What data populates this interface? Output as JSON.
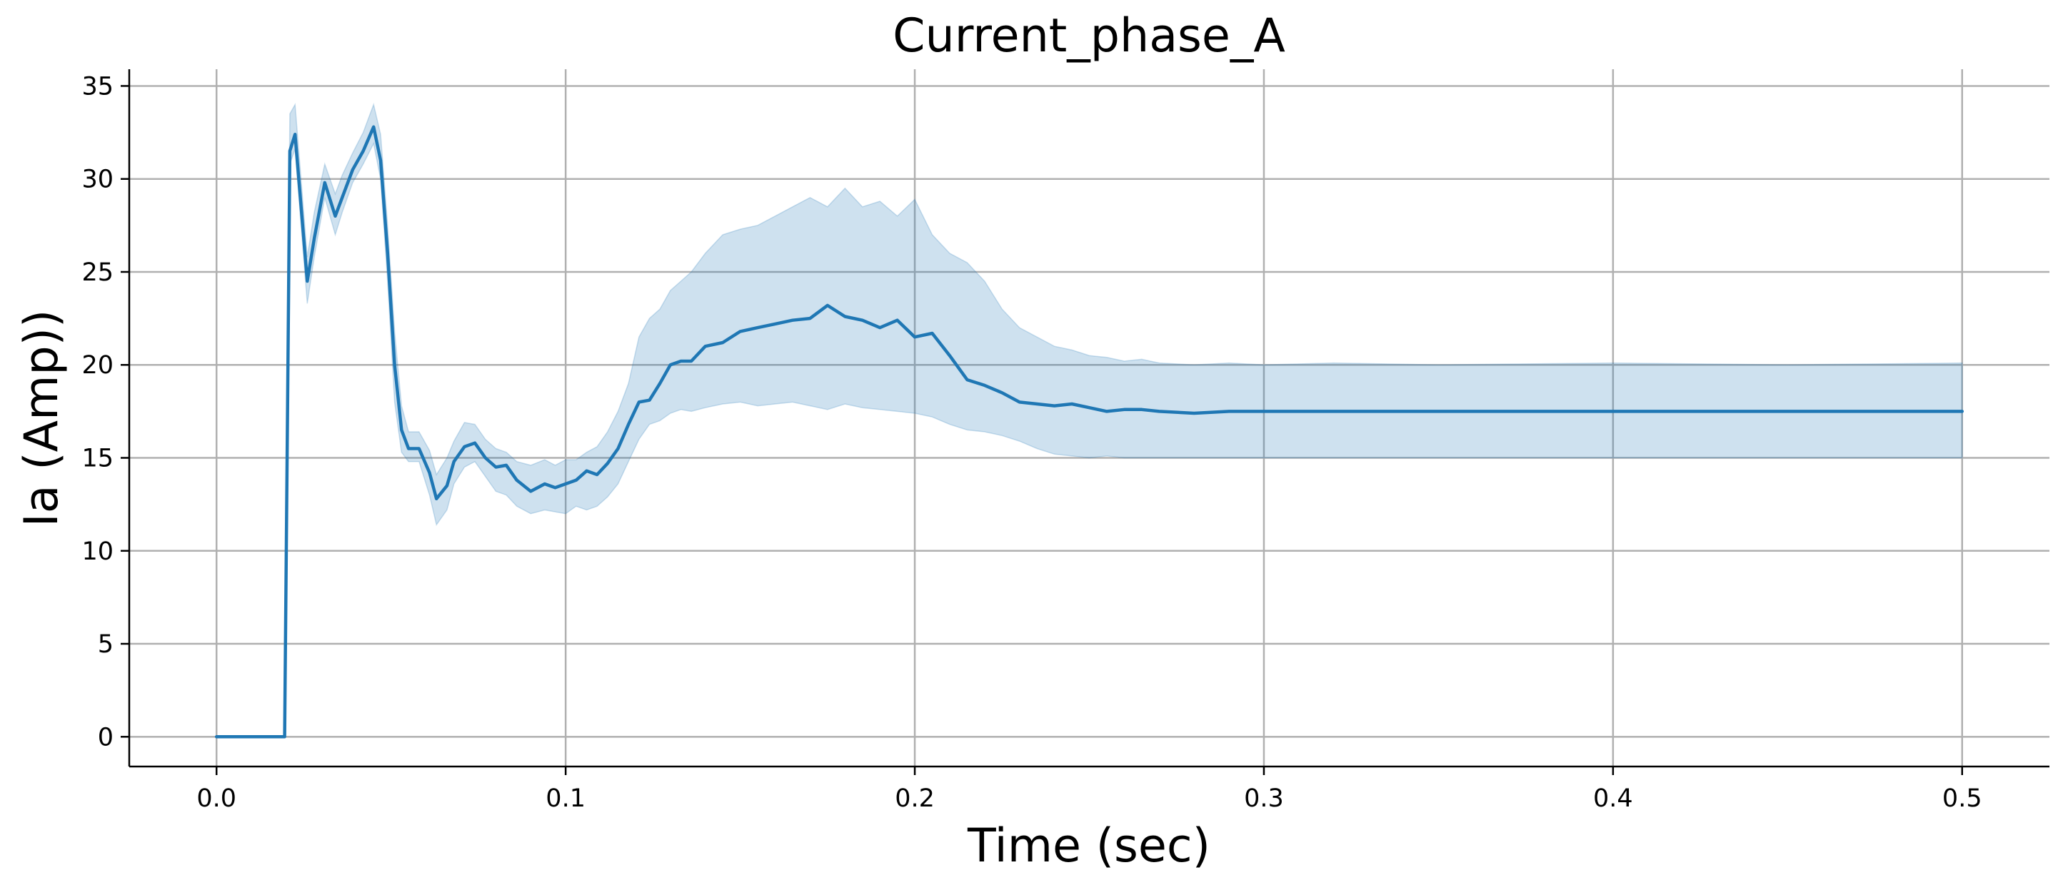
{
  "chart_data": {
    "type": "line",
    "title": "Current_phase_A",
    "xlabel": "Time (sec)",
    "ylabel": "Ia (Amp))",
    "xlim": [
      -0.025,
      0.525
    ],
    "ylim": [
      -1.6,
      35.9
    ],
    "x_ticks": [
      0.0,
      0.1,
      0.2,
      0.3,
      0.4,
      0.5
    ],
    "x_tick_labels": [
      "0.0",
      "0.1",
      "0.2",
      "0.3",
      "0.4",
      "0.5"
    ],
    "y_ticks": [
      0,
      5,
      10,
      15,
      20,
      25,
      30,
      35
    ],
    "y_tick_labels": [
      "0",
      "5",
      "10",
      "15",
      "20",
      "25",
      "30",
      "35"
    ],
    "grid": true,
    "colors": {
      "line": "#1f77b4",
      "band": "#1f77b4",
      "band_opacity": 0.22,
      "grid": "#b0b0b0"
    },
    "series": [
      {
        "style": "mean line with shaded confidence band",
        "x": [
          0.0,
          0.019,
          0.0195,
          0.021,
          0.0225,
          0.026,
          0.028,
          0.031,
          0.034,
          0.036,
          0.039,
          0.042,
          0.045,
          0.047,
          0.049,
          0.051,
          0.053,
          0.055,
          0.058,
          0.061,
          0.063,
          0.066,
          0.068,
          0.071,
          0.074,
          0.077,
          0.08,
          0.083,
          0.086,
          0.09,
          0.094,
          0.097,
          0.1,
          0.103,
          0.106,
          0.109,
          0.112,
          0.115,
          0.118,
          0.121,
          0.124,
          0.127,
          0.13,
          0.133,
          0.136,
          0.14,
          0.145,
          0.15,
          0.155,
          0.16,
          0.165,
          0.17,
          0.175,
          0.18,
          0.185,
          0.19,
          0.195,
          0.2,
          0.205,
          0.21,
          0.215,
          0.22,
          0.225,
          0.23,
          0.235,
          0.24,
          0.245,
          0.25,
          0.255,
          0.26,
          0.265,
          0.27,
          0.28,
          0.29,
          0.3,
          0.32,
          0.35,
          0.4,
          0.45,
          0.5
        ],
        "y": [
          0.0,
          0.0,
          0.0,
          31.5,
          32.4,
          24.5,
          26.8,
          29.8,
          28.0,
          29.0,
          30.5,
          31.5,
          32.8,
          31.0,
          26.0,
          20.0,
          16.5,
          15.5,
          15.5,
          14.2,
          12.8,
          13.5,
          14.8,
          15.6,
          15.8,
          15.0,
          14.5,
          14.6,
          13.8,
          13.2,
          13.6,
          13.4,
          13.6,
          13.8,
          14.3,
          14.1,
          14.7,
          15.5,
          16.8,
          18.0,
          18.1,
          19.0,
          20.0,
          20.2,
          20.2,
          21.0,
          21.2,
          21.8,
          22.0,
          22.2,
          22.4,
          22.5,
          23.2,
          22.6,
          22.4,
          22.0,
          22.4,
          21.5,
          21.7,
          20.5,
          19.2,
          18.9,
          18.5,
          18.0,
          17.9,
          17.8,
          17.9,
          17.7,
          17.5,
          17.6,
          17.6,
          17.5,
          17.4,
          17.5,
          17.5,
          17.5,
          17.5,
          17.5,
          17.5,
          17.5
        ],
        "lower": [
          0.0,
          0.0,
          0.0,
          30.8,
          31.6,
          23.3,
          25.8,
          29.0,
          27.0,
          28.2,
          29.8,
          30.8,
          31.9,
          30.0,
          24.5,
          18.0,
          15.3,
          14.8,
          14.8,
          13.0,
          11.4,
          12.2,
          13.6,
          14.5,
          14.8,
          14.0,
          13.2,
          13.0,
          12.4,
          12.0,
          12.2,
          12.1,
          12.0,
          12.4,
          12.2,
          12.4,
          12.9,
          13.6,
          14.8,
          16.0,
          16.8,
          17.0,
          17.4,
          17.6,
          17.5,
          17.7,
          17.9,
          18.0,
          17.8,
          17.9,
          18.0,
          17.8,
          17.6,
          17.9,
          17.7,
          17.6,
          17.5,
          17.4,
          17.2,
          16.8,
          16.5,
          16.4,
          16.2,
          15.9,
          15.5,
          15.2,
          15.1,
          15.0,
          15.1,
          15.0,
          15.0,
          15.0,
          15.0,
          15.0,
          15.0,
          15.0,
          15.0,
          15.0,
          15.0,
          15.0
        ],
        "upper": [
          0.0,
          0.0,
          0.0,
          33.5,
          34.0,
          25.8,
          28.2,
          30.8,
          29.2,
          30.2,
          31.4,
          32.5,
          34.0,
          32.4,
          27.5,
          21.8,
          17.8,
          16.4,
          16.4,
          15.4,
          14.1,
          15.0,
          15.9,
          16.9,
          16.8,
          16.0,
          15.5,
          15.3,
          14.8,
          14.6,
          14.9,
          14.6,
          14.9,
          14.9,
          15.3,
          15.6,
          16.4,
          17.5,
          19.0,
          21.5,
          22.5,
          23.0,
          24.0,
          24.5,
          25.0,
          26.0,
          27.0,
          27.3,
          27.5,
          28.0,
          28.5,
          29.0,
          28.5,
          29.5,
          28.5,
          28.8,
          28.0,
          28.9,
          27.0,
          26.0,
          25.5,
          24.5,
          23.0,
          22.0,
          21.5,
          21.0,
          20.8,
          20.5,
          20.4,
          20.2,
          20.3,
          20.1,
          20.0,
          20.1,
          20.0,
          20.1,
          20.0,
          20.1,
          20.0,
          20.1
        ]
      }
    ]
  }
}
